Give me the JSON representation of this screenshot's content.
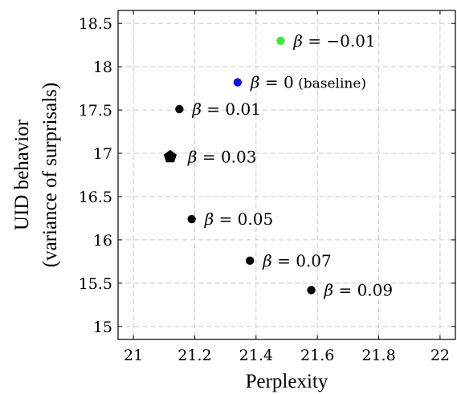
{
  "chart_data": {
    "type": "scatter",
    "title": "",
    "xlabel": "Perplexity",
    "ylabel_lines": [
      "UID behavior",
      "(variance of surprisals)"
    ],
    "xlim": [
      20.95,
      22.05
    ],
    "ylim": [
      14.85,
      18.65
    ],
    "x_ticks": [
      21,
      21.2,
      21.4,
      21.6,
      21.8,
      22
    ],
    "x_tick_labels": [
      "21",
      "21.2",
      "21.4",
      "21.6",
      "21.8",
      "22"
    ],
    "y_ticks": [
      15,
      15.5,
      16,
      16.5,
      17,
      17.5,
      18,
      18.5
    ],
    "y_tick_labels": [
      "15",
      "15.5",
      "16",
      "16.5",
      "17",
      "17.5",
      "18",
      "18.5"
    ],
    "grid": true,
    "points": [
      {
        "x": 21.48,
        "y": 18.3,
        "beta_value": "−0.01",
        "note": "",
        "color": "#33ee33",
        "marker": "circle"
      },
      {
        "x": 21.34,
        "y": 17.82,
        "beta_value": "0",
        "note": "(baseline)",
        "color": "#1010ee",
        "marker": "circle"
      },
      {
        "x": 21.15,
        "y": 17.51,
        "beta_value": "0.01",
        "note": "",
        "color": "#000000",
        "marker": "circle"
      },
      {
        "x": 21.12,
        "y": 16.96,
        "beta_value": "0.03",
        "note": "",
        "color": "#000000",
        "marker": "pentagon"
      },
      {
        "x": 21.19,
        "y": 16.24,
        "beta_value": "0.05",
        "note": "",
        "color": "#000000",
        "marker": "circle"
      },
      {
        "x": 21.38,
        "y": 15.76,
        "beta_value": "0.07",
        "note": "",
        "color": "#000000",
        "marker": "circle"
      },
      {
        "x": 21.58,
        "y": 15.42,
        "beta_value": "0.09",
        "note": "",
        "color": "#000000",
        "marker": "circle"
      }
    ],
    "beta_symbol": "β",
    "equals_sign": "="
  }
}
